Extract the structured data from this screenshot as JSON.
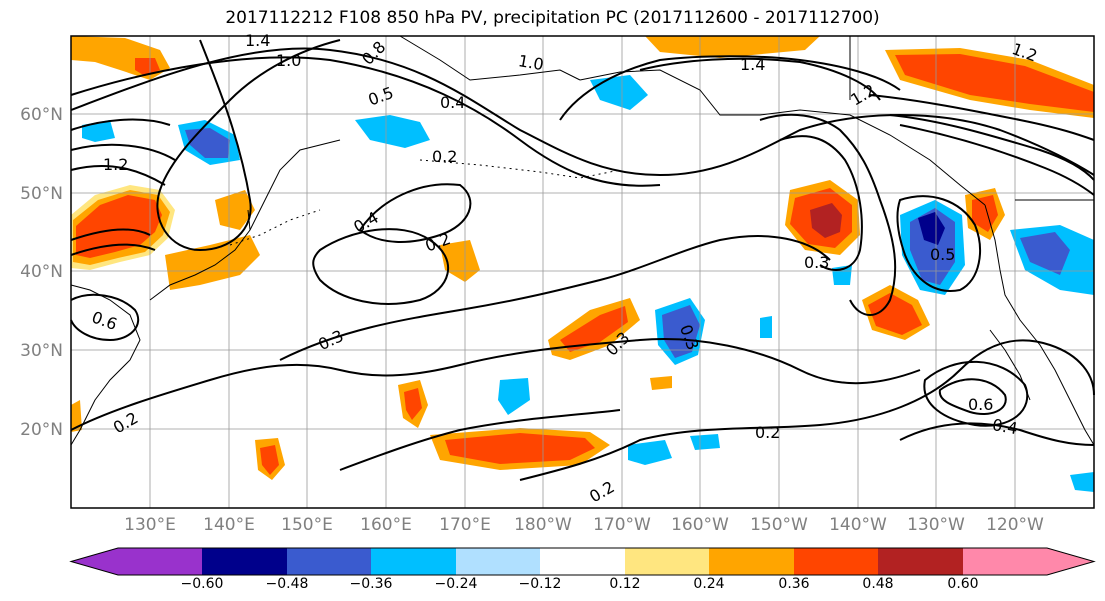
{
  "title": "2017112212 F108 850 hPa PV, precipitation PC (2017112600 - 2017112700)",
  "latitude_labels": [
    "60°N",
    "50°N",
    "40°N",
    "30°N",
    "20°N"
  ],
  "longitude_labels": [
    "130°E",
    "140°E",
    "150°E",
    "160°E",
    "170°E",
    "180°W",
    "170°W",
    "160°W",
    "150°W",
    "140°W",
    "130°W",
    "120°W"
  ],
  "contour_labels": [
    "1.4",
    "1.0",
    "0.8",
    "1.0",
    "1.4",
    "1.2",
    "1.2",
    "0.5",
    "0.4",
    "0.2",
    "1.2",
    "0.4",
    "0.2",
    "0.3",
    "0.3",
    "0.3",
    "0.3",
    "0.5",
    "0.2",
    "0.2",
    "0.2",
    "0.6",
    "0.4",
    "0.6"
  ],
  "colorbar": {
    "colors": [
      "#9932cc",
      "#00008b",
      "#3a5bcf",
      "#00bfff",
      "#b0e0ff",
      "#ffffff",
      "#ffe680",
      "#ffa500",
      "#ff4500",
      "#b22222",
      "#ff88aa"
    ],
    "tick_labels": [
      "−0.60",
      "−0.48",
      "−0.36",
      "−0.24",
      "−0.12",
      "0.12",
      "0.24",
      "0.36",
      "0.48",
      "0.60"
    ]
  },
  "map_colors": {
    "orange": "#ffa500",
    "red_orange": "#ff4500",
    "dark_red": "#b22222",
    "light_blue": "#00bfff",
    "blue": "#3a5bcf",
    "navy": "#00008b",
    "yellow": "#ffe680"
  }
}
